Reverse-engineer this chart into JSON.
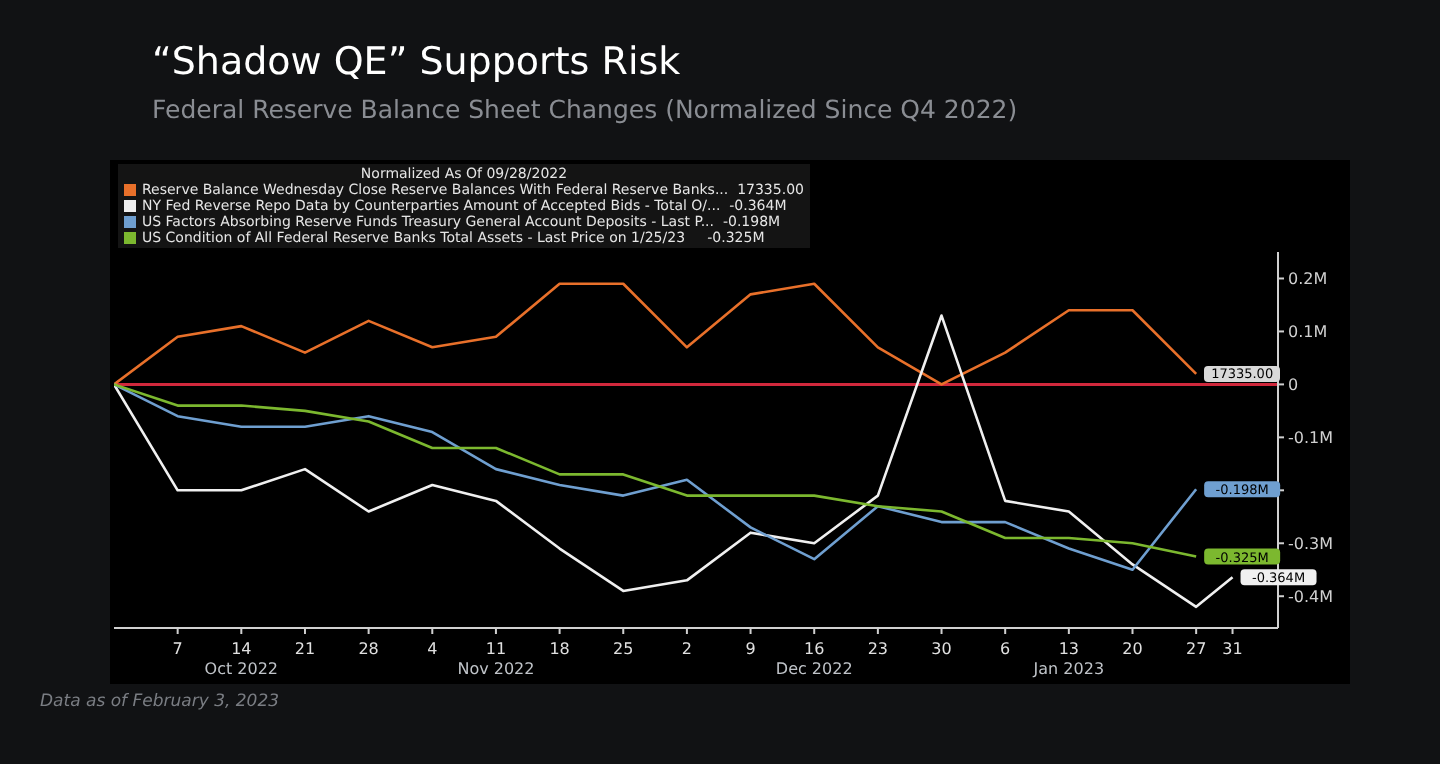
{
  "chart_data": {
    "type": "line",
    "title": "“Shadow QE” Supports Risk",
    "subtitle": "Federal Reserve Balance Sheet Changes (Normalized Since Q4 2022)",
    "legend_title": "Normalized As Of 09/28/2022",
    "legend": "top left",
    "marker": "none",
    "line_style": "solid",
    "grid": false,
    "x": [
      "2022-09-30",
      "2022-10-07",
      "2022-10-14",
      "2022-10-21",
      "2022-10-28",
      "2022-11-04",
      "2022-11-11",
      "2022-11-18",
      "2022-11-25",
      "2022-12-02",
      "2022-12-09",
      "2022-12-16",
      "2022-12-23",
      "2022-12-30",
      "2023-01-06",
      "2023-01-13",
      "2023-01-20",
      "2023-01-27"
    ],
    "xlim": [
      "2022-09-30",
      "2023-02-05"
    ],
    "xticks": [
      {
        "value": "2022-10-07",
        "label": "7"
      },
      {
        "value": "2022-10-14",
        "label": "14\nOct 2022"
      },
      {
        "value": "2022-10-21",
        "label": "21"
      },
      {
        "value": "2022-10-28",
        "label": "28"
      },
      {
        "value": "2022-11-04",
        "label": "4"
      },
      {
        "value": "2022-11-11",
        "label": "11\nNov 2022"
      },
      {
        "value": "2022-11-18",
        "label": "18"
      },
      {
        "value": "2022-11-25",
        "label": "25"
      },
      {
        "value": "2022-12-02",
        "label": "2"
      },
      {
        "value": "2022-12-09",
        "label": "9"
      },
      {
        "value": "2022-12-16",
        "label": "16\nDec 2022"
      },
      {
        "value": "2022-12-23",
        "label": "23"
      },
      {
        "value": "2022-12-30",
        "label": "30"
      },
      {
        "value": "2023-01-06",
        "label": "6"
      },
      {
        "value": "2023-01-13",
        "label": "13\nJan 2023"
      },
      {
        "value": "2023-01-20",
        "label": "20"
      },
      {
        "value": "2023-01-27",
        "label": "27"
      },
      {
        "value": "2023-01-31",
        "label": "31"
      }
    ],
    "ylim": [
      -0.46,
      0.25
    ],
    "yticks": [
      {
        "value": 0.2,
        "label": "0.2M"
      },
      {
        "value": 0.1,
        "label": "0.1M"
      },
      0,
      {
        "value": -0.1,
        "label": "-0.1M"
      },
      {
        "value": -0.2,
        "label": null
      },
      {
        "value": -0.3,
        "label": "-0.3M"
      },
      {
        "value": -0.4,
        "label": "-0.4M"
      }
    ],
    "ref_lines": [
      {
        "axis": "y",
        "value": 0,
        "color": "#d0283c"
      }
    ],
    "series": [
      {
        "name": "Reserve Balance Wednesday Close Reserve Balances With Federal Reserve Banks...  17335.00",
        "color": "#e8702a",
        "values": [
          0,
          0.09,
          0.11,
          0.06,
          0.12,
          0.07,
          0.09,
          0.19,
          0.19,
          0.07,
          0.17,
          0.19,
          0.07,
          0,
          0.06,
          0.14,
          0.14,
          0.02
        ]
      },
      {
        "name": "NY Fed Reverse Repo Data by Counterparties Amount of Accepted Bids - Total O/...  -0.364M",
        "color": "#f0f0f0",
        "x": [
          "2022-09-30",
          "2022-10-07",
          "2022-10-14",
          "2022-10-21",
          "2022-10-28",
          "2022-11-04",
          "2022-11-11",
          "2022-11-18",
          "2022-11-25",
          "2022-12-02",
          "2022-12-09",
          "2022-12-16",
          "2022-12-23",
          "2022-12-30",
          "2023-01-06",
          "2023-01-13",
          "2023-01-20",
          "2023-01-27",
          "2023-01-31"
        ],
        "values": [
          0,
          -0.2,
          -0.2,
          -0.16,
          -0.24,
          -0.19,
          -0.22,
          -0.31,
          -0.39,
          -0.37,
          -0.28,
          -0.3,
          -0.21,
          0.13,
          -0.22,
          -0.24,
          -0.34,
          -0.42,
          -0.364
        ],
        "value_labels": [
          null,
          null,
          null,
          null,
          null,
          null,
          null,
          null,
          null,
          null,
          null,
          null,
          null,
          null,
          null,
          null,
          null,
          null,
          "-0.364M"
        ]
      },
      {
        "name": "US Factors Absorbing Reserve Funds Treasury General Account Deposits - Last P...  -0.198M",
        "color": "#6f9fd0",
        "values": [
          0,
          -0.06,
          -0.08,
          -0.08,
          -0.06,
          -0.09,
          -0.16,
          -0.19,
          -0.21,
          -0.18,
          -0.27,
          -0.33,
          -0.23,
          -0.26,
          -0.26,
          -0.31,
          -0.35,
          -0.198
        ],
        "value_labels": [
          null,
          null,
          null,
          null,
          null,
          null,
          null,
          null,
          null,
          null,
          null,
          null,
          null,
          null,
          null,
          null,
          null,
          "-0.198M"
        ]
      },
      {
        "name": "US Condition of All Federal Reserve Banks Total Assets - Last Price on 1/25/23     -0.325M",
        "color": "#7cb82f",
        "values": [
          0,
          -0.04,
          -0.04,
          -0.05,
          -0.07,
          -0.12,
          -0.12,
          -0.17,
          -0.17,
          -0.21,
          -0.21,
          -0.21,
          -0.23,
          -0.24,
          -0.29,
          -0.29,
          -0.3,
          -0.325
        ],
        "value_labels": [
          null,
          null,
          null,
          null,
          null,
          null,
          null,
          null,
          null,
          null,
          null,
          null,
          null,
          null,
          null,
          null,
          null,
          "-0.325M"
        ]
      }
    ],
    "annotations": [
      {
        "text": "17335.00",
        "x": "2023-01-27",
        "y": 0.02
      },
      "Data as of February 3, 2023"
    ]
  }
}
